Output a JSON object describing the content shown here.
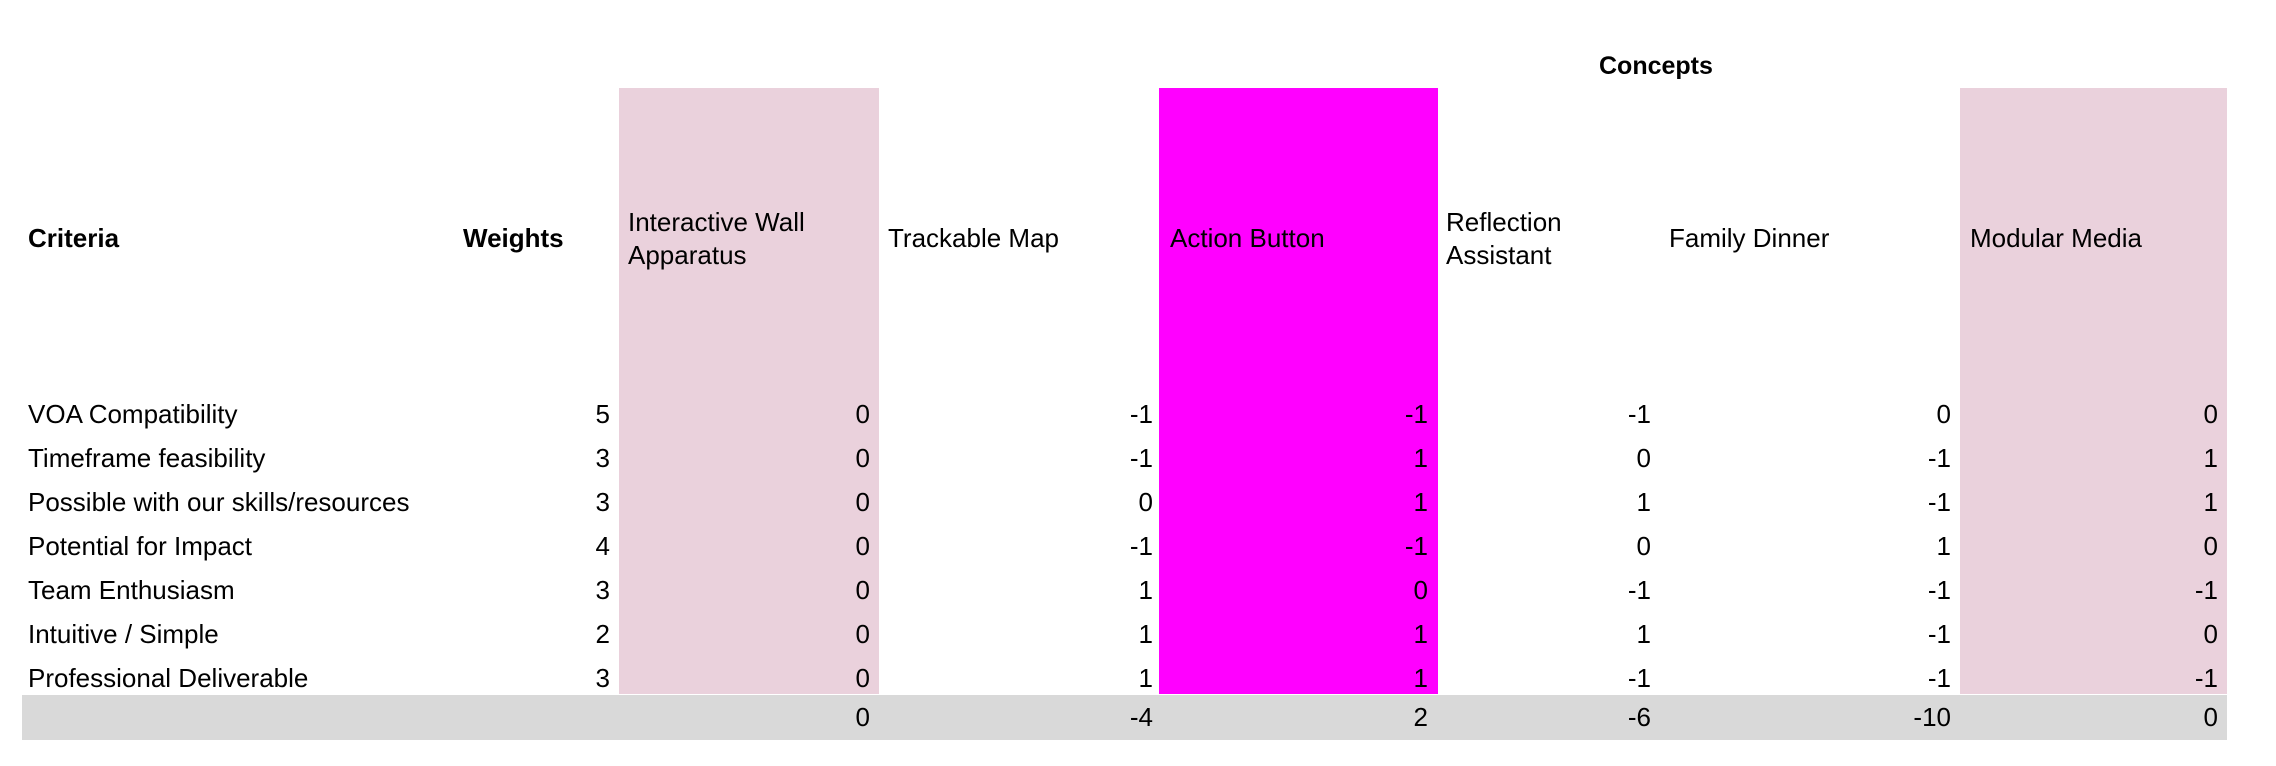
{
  "header": {
    "group_label": "Concepts",
    "criteria_label": "Criteria",
    "weights_label": "Weights",
    "concepts": [
      {
        "line1": "Interactive Wall",
        "line2": "Apparatus",
        "fill": "#ead1dc"
      },
      {
        "line1": "Trackable Map",
        "line2": "",
        "fill": "#ffffff"
      },
      {
        "line1": "Action Button",
        "line2": "",
        "fill": "#ff00ff"
      },
      {
        "line1": "Reflection",
        "line2": "Assistant",
        "fill": "#ffffff"
      },
      {
        "line1": "Family Dinner",
        "line2": "",
        "fill": "#ffffff"
      },
      {
        "line1": "Modular Media",
        "line2": "",
        "fill": "#ead1dc"
      }
    ]
  },
  "rows": [
    {
      "criterion": "VOA Compatibility",
      "weight": "5",
      "scores": [
        "0",
        "-1",
        "-1",
        "-1",
        "0",
        "0"
      ]
    },
    {
      "criterion": "Timeframe feasibility",
      "weight": "3",
      "scores": [
        "0",
        "-1",
        "1",
        "0",
        "-1",
        "1"
      ]
    },
    {
      "criterion": "Possible with our skills/resources",
      "weight": "3",
      "scores": [
        "0",
        "0",
        "1",
        "1",
        "-1",
        "1"
      ]
    },
    {
      "criterion": "Potential for Impact",
      "weight": "4",
      "scores": [
        "0",
        "-1",
        "-1",
        "0",
        "1",
        "0"
      ]
    },
    {
      "criterion": "Team Enthusiasm",
      "weight": "3",
      "scores": [
        "0",
        "1",
        "0",
        "-1",
        "-1",
        "-1"
      ]
    },
    {
      "criterion": "Intuitive / Simple",
      "weight": "2",
      "scores": [
        "0",
        "1",
        "1",
        "1",
        "-1",
        "0"
      ]
    },
    {
      "criterion": "Professional Deliverable",
      "weight": "3",
      "scores": [
        "0",
        "1",
        "1",
        "-1",
        "-1",
        "-1"
      ]
    }
  ],
  "totals": [
    "0",
    "-4",
    "2",
    "-6",
    "-10",
    "0"
  ],
  "colors": {
    "pink": "#ead1dc",
    "magenta": "#ff00ff",
    "total_row": "#d9d9d9"
  }
}
